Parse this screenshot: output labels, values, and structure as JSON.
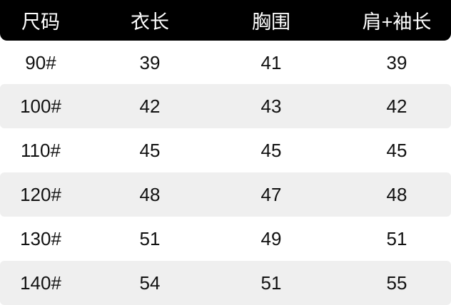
{
  "table": {
    "headers": [
      "尺码",
      "衣长",
      "胸围",
      "肩+袖长"
    ],
    "rows": [
      [
        "90#",
        "39",
        "41",
        "39"
      ],
      [
        "100#",
        "42",
        "43",
        "42"
      ],
      [
        "110#",
        "45",
        "45",
        "45"
      ],
      [
        "120#",
        "48",
        "47",
        "48"
      ],
      [
        "130#",
        "51",
        "49",
        "51"
      ],
      [
        "140#",
        "54",
        "51",
        "55"
      ]
    ]
  },
  "colors": {
    "header_bg": "#000000",
    "header_text": "#ffffff",
    "stripe": "#efefef"
  }
}
